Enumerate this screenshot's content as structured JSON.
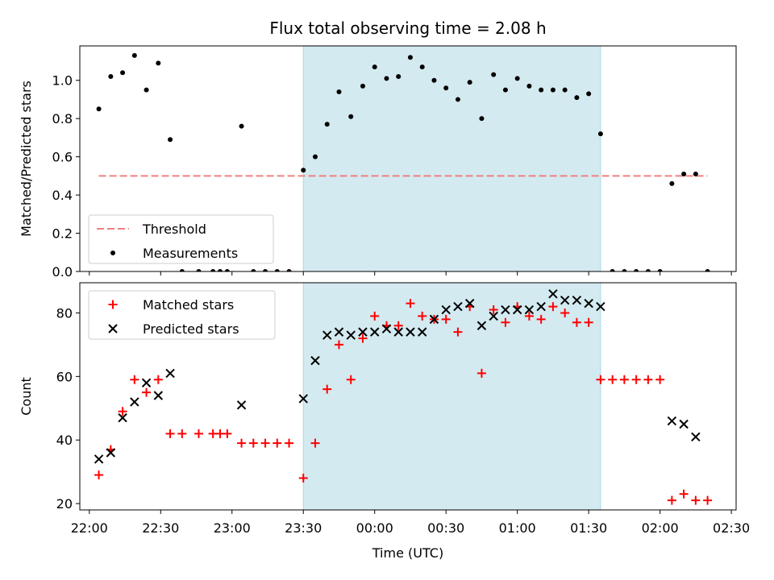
{
  "chart_data": {
    "type": "scatter",
    "title": "Flux total observing time = 2.08 h",
    "xlabel": "Time (UTC)",
    "x_ticks": [
      "22:00",
      "22:30",
      "23:00",
      "23:30",
      "00:00",
      "00:30",
      "01:00",
      "01:30",
      "02:00",
      "02:30"
    ],
    "x_range": [
      "21:56",
      "02:32"
    ],
    "shaded_interval": [
      "23:30",
      "01:35"
    ],
    "colors": {
      "shade": "#d3eaf0",
      "shade_edge": "#add8e6",
      "threshold": "#f08080",
      "measurement": "#000000",
      "matched": "#ff0000",
      "predicted": "#000000"
    },
    "panels": [
      {
        "name": "ratio",
        "ylabel": "Matched/Predicted stars",
        "ylim": [
          0,
          1.18
        ],
        "y_ticks": [
          "0.0",
          "0.2",
          "0.4",
          "0.6",
          "0.8",
          "1.0"
        ],
        "threshold": {
          "name": "Threshold",
          "value": 0.5,
          "x_start": "22:04",
          "x_end": "02:20"
        },
        "legend": [
          "Threshold",
          "Measurements"
        ],
        "legend_position": "lower-left",
        "series": [
          {
            "name": "Measurements",
            "marker": "dot",
            "points": [
              [
                "22:04",
                0.85
              ],
              [
                "22:09",
                1.02
              ],
              [
                "22:14",
                1.04
              ],
              [
                "22:19",
                1.13
              ],
              [
                "22:24",
                0.95
              ],
              [
                "22:29",
                1.09
              ],
              [
                "22:34",
                0.69
              ],
              [
                "22:39",
                0.0
              ],
              [
                "22:46",
                0.0
              ],
              [
                "22:52",
                0.0
              ],
              [
                "22:55",
                0.0
              ],
              [
                "22:58",
                0.0
              ],
              [
                "23:04",
                0.76
              ],
              [
                "23:09",
                0.0
              ],
              [
                "23:14",
                0.0
              ],
              [
                "23:19",
                0.0
              ],
              [
                "23:24",
                0.0
              ],
              [
                "23:30",
                0.53
              ],
              [
                "23:35",
                0.6
              ],
              [
                "23:40",
                0.77
              ],
              [
                "23:45",
                0.94
              ],
              [
                "23:50",
                0.81
              ],
              [
                "23:55",
                0.97
              ],
              [
                "00:00",
                1.07
              ],
              [
                "00:05",
                1.01
              ],
              [
                "00:10",
                1.02
              ],
              [
                "00:15",
                1.12
              ],
              [
                "00:20",
                1.07
              ],
              [
                "00:25",
                1.0
              ],
              [
                "00:30",
                0.96
              ],
              [
                "00:35",
                0.9
              ],
              [
                "00:40",
                0.99
              ],
              [
                "00:45",
                0.8
              ],
              [
                "00:50",
                1.03
              ],
              [
                "00:55",
                0.95
              ],
              [
                "01:00",
                1.01
              ],
              [
                "01:05",
                0.97
              ],
              [
                "01:10",
                0.95
              ],
              [
                "01:15",
                0.95
              ],
              [
                "01:20",
                0.95
              ],
              [
                "01:25",
                0.91
              ],
              [
                "01:30",
                0.93
              ],
              [
                "01:35",
                0.72
              ],
              [
                "01:40",
                0.0
              ],
              [
                "01:45",
                0.0
              ],
              [
                "01:50",
                0.0
              ],
              [
                "01:55",
                0.0
              ],
              [
                "02:00",
                0.0
              ],
              [
                "02:05",
                0.46
              ],
              [
                "02:10",
                0.51
              ],
              [
                "02:15",
                0.51
              ],
              [
                "02:20",
                0.0
              ]
            ]
          }
        ]
      },
      {
        "name": "count",
        "ylabel": "Count",
        "ylim": [
          18,
          89.5
        ],
        "y_ticks": [
          "20",
          "40",
          "60",
          "80"
        ],
        "legend": [
          "Matched stars",
          "Predicted stars"
        ],
        "legend_position": "upper-left",
        "series": [
          {
            "name": "Matched stars",
            "marker": "plus",
            "points": [
              [
                "22:04",
                29
              ],
              [
                "22:09",
                37
              ],
              [
                "22:14",
                49
              ],
              [
                "22:19",
                59
              ],
              [
                "22:24",
                55
              ],
              [
                "22:29",
                59
              ],
              [
                "22:34",
                42
              ],
              [
                "22:39",
                42
              ],
              [
                "22:46",
                42
              ],
              [
                "22:52",
                42
              ],
              [
                "22:55",
                42
              ],
              [
                "22:58",
                42
              ],
              [
                "23:04",
                39
              ],
              [
                "23:09",
                39
              ],
              [
                "23:14",
                39
              ],
              [
                "23:19",
                39
              ],
              [
                "23:24",
                39
              ],
              [
                "23:30",
                28
              ],
              [
                "23:35",
                39
              ],
              [
                "23:40",
                56
              ],
              [
                "23:45",
                70
              ],
              [
                "23:50",
                59
              ],
              [
                "23:55",
                72
              ],
              [
                "00:00",
                79
              ],
              [
                "00:05",
                76
              ],
              [
                "00:10",
                76
              ],
              [
                "00:15",
                83
              ],
              [
                "00:20",
                79
              ],
              [
                "00:25",
                78
              ],
              [
                "00:30",
                78
              ],
              [
                "00:35",
                74
              ],
              [
                "00:40",
                82
              ],
              [
                "00:45",
                61
              ],
              [
                "00:50",
                81
              ],
              [
                "00:55",
                77
              ],
              [
                "01:00",
                82
              ],
              [
                "01:05",
                79
              ],
              [
                "01:10",
                78
              ],
              [
                "01:15",
                82
              ],
              [
                "01:20",
                80
              ],
              [
                "01:25",
                77
              ],
              [
                "01:30",
                77
              ],
              [
                "01:35",
                59
              ],
              [
                "01:40",
                59
              ],
              [
                "01:45",
                59
              ],
              [
                "01:50",
                59
              ],
              [
                "01:55",
                59
              ],
              [
                "02:00",
                59
              ],
              [
                "02:05",
                21
              ],
              [
                "02:10",
                23
              ],
              [
                "02:15",
                21
              ],
              [
                "02:20",
                21
              ]
            ]
          },
          {
            "name": "Predicted stars",
            "marker": "x",
            "points": [
              [
                "22:04",
                34
              ],
              [
                "22:09",
                36
              ],
              [
                "22:14",
                47
              ],
              [
                "22:19",
                52
              ],
              [
                "22:24",
                58
              ],
              [
                "22:29",
                54
              ],
              [
                "22:34",
                61
              ],
              [
                "23:04",
                51
              ],
              [
                "23:30",
                53
              ],
              [
                "23:35",
                65
              ],
              [
                "23:40",
                73
              ],
              [
                "23:45",
                74
              ],
              [
                "23:50",
                73
              ],
              [
                "23:55",
                74
              ],
              [
                "00:00",
                74
              ],
              [
                "00:05",
                75
              ],
              [
                "00:10",
                74
              ],
              [
                "00:15",
                74
              ],
              [
                "00:20",
                74
              ],
              [
                "00:25",
                78
              ],
              [
                "00:30",
                81
              ],
              [
                "00:35",
                82
              ],
              [
                "00:40",
                83
              ],
              [
                "00:45",
                76
              ],
              [
                "00:50",
                79
              ],
              [
                "00:55",
                81
              ],
              [
                "01:00",
                81
              ],
              [
                "01:05",
                81
              ],
              [
                "01:10",
                82
              ],
              [
                "01:15",
                86
              ],
              [
                "01:20",
                84
              ],
              [
                "01:25",
                84
              ],
              [
                "01:30",
                83
              ],
              [
                "01:35",
                82
              ],
              [
                "02:05",
                46
              ],
              [
                "02:10",
                45
              ],
              [
                "02:15",
                41
              ]
            ]
          }
        ]
      }
    ]
  }
}
